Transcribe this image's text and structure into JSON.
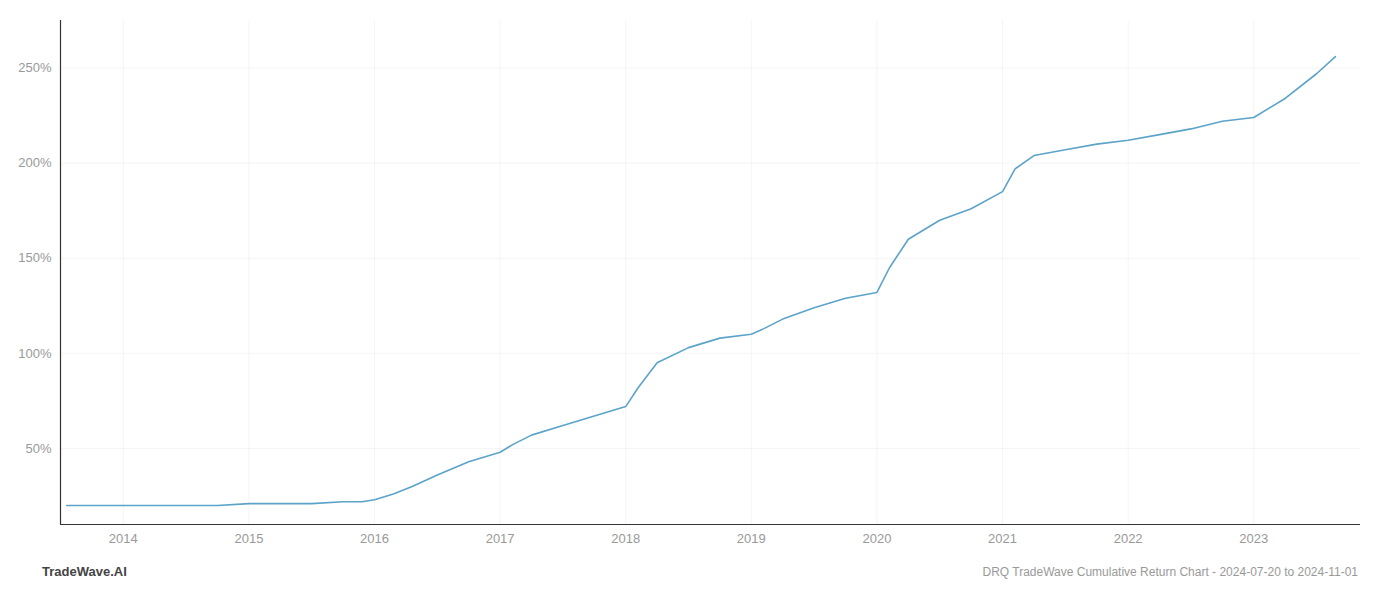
{
  "chart_data": {
    "type": "line",
    "title": "DRQ TradeWave Cumulative Return Chart - 2024-07-20 to 2024-11-01",
    "annotations": [
      "TradeWave.AI"
    ],
    "color": "#5ba3c9",
    "grid": true,
    "x": [
      2013.55,
      2013.65,
      2013.8,
      2014.0,
      2014.2,
      2014.5,
      2014.75,
      2015.0,
      2015.1,
      2015.25,
      2015.5,
      2015.75,
      2015.9,
      2016.0,
      2016.15,
      2016.3,
      2016.5,
      2016.75,
      2017.0,
      2017.1,
      2017.25,
      2017.5,
      2017.75,
      2018.0,
      2018.1,
      2018.25,
      2018.5,
      2018.75,
      2019.0,
      2019.1,
      2019.25,
      2019.5,
      2019.75,
      2020.0,
      2020.1,
      2020.25,
      2020.5,
      2020.75,
      2021.0,
      2021.1,
      2021.25,
      2021.5,
      2021.75,
      2022.0,
      2022.25,
      2022.5,
      2022.75,
      2023.0,
      2023.25,
      2023.5,
      2023.65
    ],
    "values": [
      20,
      20,
      20,
      20,
      20,
      20,
      20,
      21,
      21,
      21,
      21,
      22,
      22,
      23,
      26,
      30,
      36,
      43,
      48,
      52,
      57,
      62,
      67,
      72,
      82,
      95,
      103,
      108,
      110,
      113,
      118,
      124,
      129,
      132,
      145,
      160,
      170,
      176,
      185,
      197,
      204,
      207,
      210,
      212,
      215,
      218,
      222,
      224,
      234,
      247,
      256
    ],
    "xlim": [
      2013.5,
      2023.85
    ],
    "xticks": [
      2014,
      2015,
      2016,
      2017,
      2018,
      2019,
      2020,
      2021,
      2022,
      2023
    ],
    "ylim": [
      10,
      275
    ],
    "yticks": [
      {
        "value": 50,
        "label": "50%"
      },
      {
        "value": 100,
        "label": "100%"
      },
      {
        "value": 150,
        "label": "150%"
      },
      {
        "value": 200,
        "label": "200%"
      },
      {
        "value": 250,
        "label": "250%"
      }
    ]
  }
}
